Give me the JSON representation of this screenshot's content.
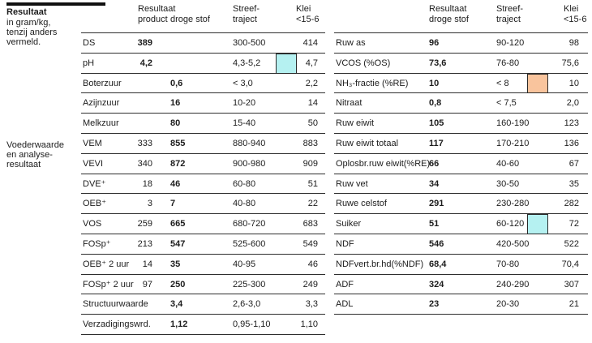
{
  "sidebar": {
    "title": "Resultaat",
    "subtitle_lines": [
      "in gram/kg,",
      "tenzij anders",
      "vermeld."
    ],
    "section_lines": [
      "Voederwaarde",
      "en analyse-",
      "resultaat"
    ]
  },
  "colors": {
    "cyan": "#b5f1f1",
    "orange": "#f9c49d"
  },
  "left_table": {
    "header": {
      "resultaat": "Resultaat",
      "product": "product",
      "droge_stof": "droge stof",
      "streef1": "Streef-",
      "streef2": "traject",
      "klei1": "Klei",
      "klei2": "<15-6"
    },
    "rows": [
      {
        "label": "DS",
        "product": "389",
        "product_bold": true,
        "ds": "",
        "streef": "300-500",
        "klei": "414",
        "marker": null
      },
      {
        "label": "pH",
        "product": "4,2",
        "product_bold": true,
        "ds": "",
        "streef": "4,3-5,2",
        "klei": "4,7",
        "marker": "cyan"
      },
      {
        "label": "Boterzuur",
        "product": "",
        "ds": "0,6",
        "streef": "< 3,0",
        "klei": "2,2",
        "marker": null
      },
      {
        "label": "Azijnzuur",
        "product": "",
        "ds": "16",
        "streef": "10-20",
        "klei": "14",
        "marker": null
      },
      {
        "label": "Melkzuur",
        "product": "",
        "ds": "80",
        "streef": "15-40",
        "klei": "50",
        "marker": null
      },
      {
        "label": "VEM",
        "product": "333",
        "ds": "855",
        "streef": "880-940",
        "klei": "883",
        "marker": null
      },
      {
        "label": "VEVI",
        "product": "340",
        "ds": "872",
        "streef": "900-980",
        "klei": "909",
        "marker": null
      },
      {
        "label": "DVE⁺",
        "product": "18",
        "ds": "46",
        "streef": "60-80",
        "klei": "51",
        "marker": null
      },
      {
        "label": "OEB⁺",
        "product": "3",
        "ds": "7",
        "streef": "40-80",
        "klei": "22",
        "marker": null
      },
      {
        "label": "VOS",
        "product": "259",
        "ds": "665",
        "streef": "680-720",
        "klei": "683",
        "marker": null
      },
      {
        "label": "FOSp⁺",
        "product": "213",
        "ds": "547",
        "streef": "525-600",
        "klei": "549",
        "marker": null
      },
      {
        "label": "OEB⁺ 2 uur",
        "product": "14",
        "ds": "35",
        "streef": "40-95",
        "klei": "46",
        "marker": null
      },
      {
        "label": "FOSp⁺ 2 uur",
        "product": "97",
        "ds": "250",
        "streef": "225-300",
        "klei": "249",
        "marker": null
      },
      {
        "label": "Structuurwaarde",
        "product": "",
        "ds": "3,4",
        "streef": "2,6-3,0",
        "klei": "3,3",
        "marker": null
      },
      {
        "label": "Verzadigingswrd.",
        "product": "",
        "ds": "1,12",
        "streef": "0,95-1,10",
        "klei": "1,10",
        "marker": null
      }
    ]
  },
  "right_table": {
    "header": {
      "resultaat": "Resultaat",
      "droge_stof": "droge stof",
      "streef1": "Streef-",
      "streef2": "traject",
      "klei1": "Klei",
      "klei2": "<15-6"
    },
    "rows": [
      {
        "label": "Ruw as",
        "ds": "96",
        "streef": "90-120",
        "klei": "98",
        "marker": null
      },
      {
        "label": "VCOS (%OS)",
        "ds": "73,6",
        "streef": "76-80",
        "klei": "75,6",
        "marker": null
      },
      {
        "label": "NH₃-fractie (%RE)",
        "ds": "10",
        "streef": "< 8",
        "klei": "10",
        "marker": "orange"
      },
      {
        "label": "Nitraat",
        "ds": "0,8",
        "streef": "< 7,5",
        "klei": "2,0",
        "marker": null
      },
      {
        "label": "Ruw eiwit",
        "ds": "105",
        "streef": "160-190",
        "klei": "123",
        "marker": null
      },
      {
        "label": "Ruw eiwit totaal",
        "ds": "117",
        "streef": "170-210",
        "klei": "136",
        "marker": null
      },
      {
        "label": "Oplosbr.ruw eiwit(%RE)",
        "ds": "66",
        "streef": "40-60",
        "klei": "67",
        "marker": null
      },
      {
        "label": "Ruw vet",
        "ds": "34",
        "streef": "30-50",
        "klei": "35",
        "marker": null
      },
      {
        "label": "Ruwe celstof",
        "ds": "291",
        "streef": "230-280",
        "klei": "282",
        "marker": null
      },
      {
        "label": "Suiker",
        "ds": "51",
        "streef": "60-120",
        "klei": "72",
        "marker": "cyan"
      },
      {
        "label": "NDF",
        "ds": "546",
        "streef": "420-500",
        "klei": "522",
        "marker": null
      },
      {
        "label": "NDFvert.br.hd(%NDF)",
        "ds": "68,4",
        "streef": "70-80",
        "klei": "70,4",
        "marker": null
      },
      {
        "label": "ADF",
        "ds": "324",
        "streef": "240-290",
        "klei": "307",
        "marker": null
      },
      {
        "label": "ADL",
        "ds": "23",
        "streef": "20-30",
        "klei": "21",
        "marker": null
      }
    ]
  }
}
